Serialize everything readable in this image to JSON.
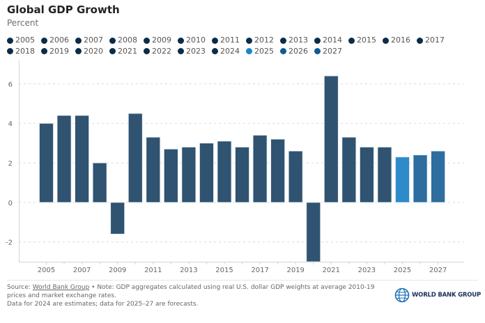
{
  "header": {
    "title": "Global GDP Growth",
    "subtitle": "Percent"
  },
  "legend": [
    {
      "label": "2005",
      "color": "#0b2c4a"
    },
    {
      "label": "2006",
      "color": "#0b2c4a"
    },
    {
      "label": "2007",
      "color": "#0b2c4a"
    },
    {
      "label": "2008",
      "color": "#0b2c4a"
    },
    {
      "label": "2009",
      "color": "#0b2c4a"
    },
    {
      "label": "2010",
      "color": "#0b2c4a"
    },
    {
      "label": "2011",
      "color": "#0b2c4a"
    },
    {
      "label": "2012",
      "color": "#0b2c4a"
    },
    {
      "label": "2013",
      "color": "#0b2c4a"
    },
    {
      "label": "2014",
      "color": "#0b2c4a"
    },
    {
      "label": "2015",
      "color": "#0b2c4a"
    },
    {
      "label": "2016",
      "color": "#0b2c4a"
    },
    {
      "label": "2017",
      "color": "#0b2c4a"
    },
    {
      "label": "2018",
      "color": "#0b2c4a"
    },
    {
      "label": "2019",
      "color": "#0b2c4a"
    },
    {
      "label": "2020",
      "color": "#0b2c4a"
    },
    {
      "label": "2021",
      "color": "#0b2c4a"
    },
    {
      "label": "2022",
      "color": "#0b2c4a"
    },
    {
      "label": "2023",
      "color": "#0b2c4a"
    },
    {
      "label": "2024",
      "color": "#0b2c4a"
    },
    {
      "label": "2025",
      "color": "#1a86c8"
    },
    {
      "label": "2026",
      "color": "#0f5a94"
    },
    {
      "label": "2027",
      "color": "#0f5a94"
    }
  ],
  "chart_data": {
    "type": "bar",
    "title": "Global GDP Growth",
    "subtitle": "Percent",
    "xlabel": "",
    "ylabel": "Percent",
    "categories": [
      "2005",
      "2006",
      "2007",
      "2008",
      "2009",
      "2010",
      "2011",
      "2012",
      "2013",
      "2014",
      "2015",
      "2016",
      "2017",
      "2018",
      "2019",
      "2020",
      "2021",
      "2022",
      "2023",
      "2024",
      "2025",
      "2026",
      "2027"
    ],
    "values": [
      4.0,
      4.4,
      4.4,
      2.0,
      -1.6,
      4.5,
      3.3,
      2.7,
      2.8,
      3.0,
      3.1,
      2.8,
      3.4,
      3.2,
      2.6,
      -3.0,
      6.4,
      3.3,
      2.8,
      2.8,
      2.3,
      2.4,
      2.6
    ],
    "bar_colors": [
      "#2f5370",
      "#2f5370",
      "#2f5370",
      "#2f5370",
      "#2f5370",
      "#2f5370",
      "#2f5370",
      "#2f5370",
      "#2f5370",
      "#2f5370",
      "#2f5370",
      "#2f5370",
      "#2f5370",
      "#2f5370",
      "#2f5370",
      "#2f5370",
      "#2f5370",
      "#2f5370",
      "#2f5370",
      "#2f5370",
      "#2e8bc9",
      "#2d6d9f",
      "#2d6d9f"
    ],
    "ylim": [
      -3,
      7
    ],
    "yticks": [
      -2,
      0,
      2,
      4,
      6
    ],
    "xtick_labels": [
      "2005",
      "2007",
      "2009",
      "2011",
      "2013",
      "2015",
      "2017",
      "2019",
      "2021",
      "2023",
      "2025",
      "2027"
    ],
    "grid": true,
    "legend_position": "top"
  },
  "footer": {
    "source_prefix": "Source: ",
    "source_link": "World Bank Group",
    "note": " • Note: GDP aggregates calculated using real U.S. dollar GDP weights at average 2010-19 prices and market exchange rates.",
    "note2": "Data for 2024 are estimates; data for 2025–27 are forecasts.",
    "logo_text": "WORLD BANK GROUP"
  }
}
